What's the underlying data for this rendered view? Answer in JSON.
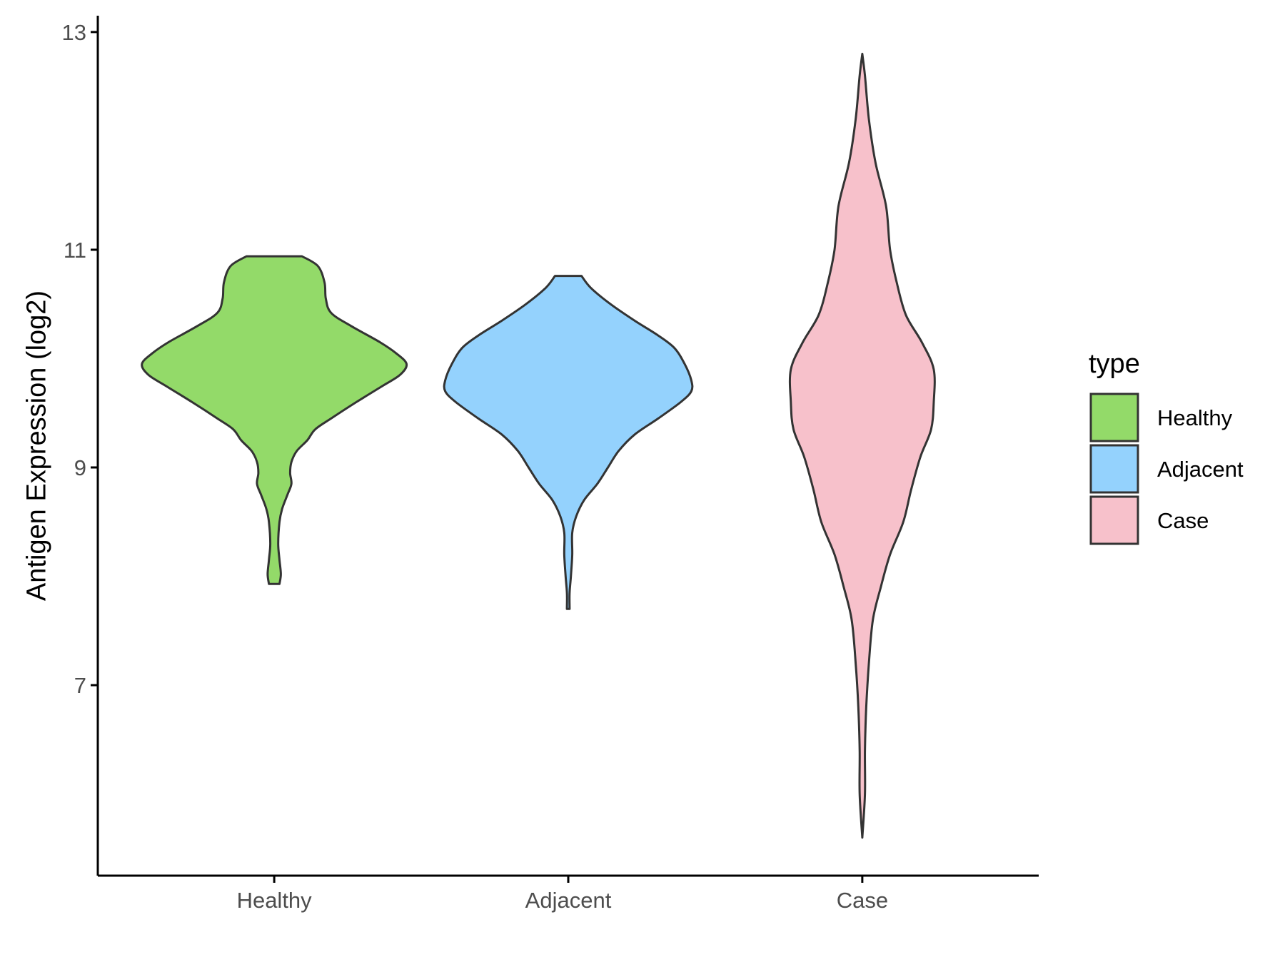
{
  "chart_data": {
    "type": "violin",
    "title": "",
    "xlabel": "",
    "ylabel": "Antigen Expression (log2)",
    "ylim": [
      5.25,
      13.15
    ],
    "yticks": [
      7,
      9,
      11,
      13
    ],
    "categories": [
      "Healthy",
      "Adjacent",
      "Case"
    ],
    "colors": {
      "Healthy": "#93da69",
      "Adjacent": "#94d2fd",
      "Case": "#f7c1cb",
      "outline": "#333333",
      "axis": "#000000"
    },
    "legend": {
      "title": "type",
      "position": "right",
      "entries": [
        "Healthy",
        "Adjacent",
        "Case"
      ]
    },
    "grid": false,
    "series": [
      {
        "name": "Healthy",
        "min": 7.93,
        "max": 10.94,
        "density_profile": [
          [
            10.94,
            0.21
          ],
          [
            10.85,
            0.33
          ],
          [
            10.7,
            0.38
          ],
          [
            10.55,
            0.39
          ],
          [
            10.42,
            0.43
          ],
          [
            10.3,
            0.58
          ],
          [
            10.15,
            0.8
          ],
          [
            10.05,
            0.92
          ],
          [
            9.95,
            1.0
          ],
          [
            9.85,
            0.95
          ],
          [
            9.75,
            0.82
          ],
          [
            9.6,
            0.62
          ],
          [
            9.45,
            0.43
          ],
          [
            9.35,
            0.31
          ],
          [
            9.25,
            0.25
          ],
          [
            9.15,
            0.17
          ],
          [
            9.05,
            0.13
          ],
          [
            8.95,
            0.12
          ],
          [
            8.85,
            0.13
          ],
          [
            8.75,
            0.1
          ],
          [
            8.62,
            0.06
          ],
          [
            8.5,
            0.04
          ],
          [
            8.3,
            0.03
          ],
          [
            8.15,
            0.04
          ],
          [
            8.02,
            0.05
          ],
          [
            7.93,
            0.04
          ]
        ]
      },
      {
        "name": "Adjacent",
        "min": 7.7,
        "max": 10.76,
        "density_profile": [
          [
            10.76,
            0.1
          ],
          [
            10.65,
            0.17
          ],
          [
            10.5,
            0.32
          ],
          [
            10.35,
            0.5
          ],
          [
            10.22,
            0.67
          ],
          [
            10.1,
            0.8
          ],
          [
            9.95,
            0.88
          ],
          [
            9.8,
            0.93
          ],
          [
            9.7,
            0.93
          ],
          [
            9.6,
            0.85
          ],
          [
            9.45,
            0.68
          ],
          [
            9.3,
            0.5
          ],
          [
            9.15,
            0.38
          ],
          [
            9.0,
            0.3
          ],
          [
            8.85,
            0.22
          ],
          [
            8.7,
            0.12
          ],
          [
            8.55,
            0.06
          ],
          [
            8.4,
            0.03
          ],
          [
            8.2,
            0.03
          ],
          [
            8.0,
            0.02
          ],
          [
            7.85,
            0.01
          ],
          [
            7.7,
            0.01
          ]
        ]
      },
      {
        "name": "Case",
        "min": 5.6,
        "max": 12.8,
        "density_profile": [
          [
            12.8,
            0.0
          ],
          [
            12.6,
            0.02
          ],
          [
            12.2,
            0.05
          ],
          [
            11.8,
            0.1
          ],
          [
            11.4,
            0.18
          ],
          [
            11.0,
            0.21
          ],
          [
            10.7,
            0.26
          ],
          [
            10.4,
            0.33
          ],
          [
            10.15,
            0.45
          ],
          [
            9.9,
            0.54
          ],
          [
            9.6,
            0.54
          ],
          [
            9.35,
            0.52
          ],
          [
            9.1,
            0.44
          ],
          [
            8.8,
            0.37
          ],
          [
            8.5,
            0.31
          ],
          [
            8.2,
            0.21
          ],
          [
            7.9,
            0.14
          ],
          [
            7.6,
            0.08
          ],
          [
            7.2,
            0.05
          ],
          [
            6.8,
            0.03
          ],
          [
            6.4,
            0.02
          ],
          [
            6.0,
            0.02
          ],
          [
            5.6,
            0.0
          ]
        ]
      }
    ]
  }
}
